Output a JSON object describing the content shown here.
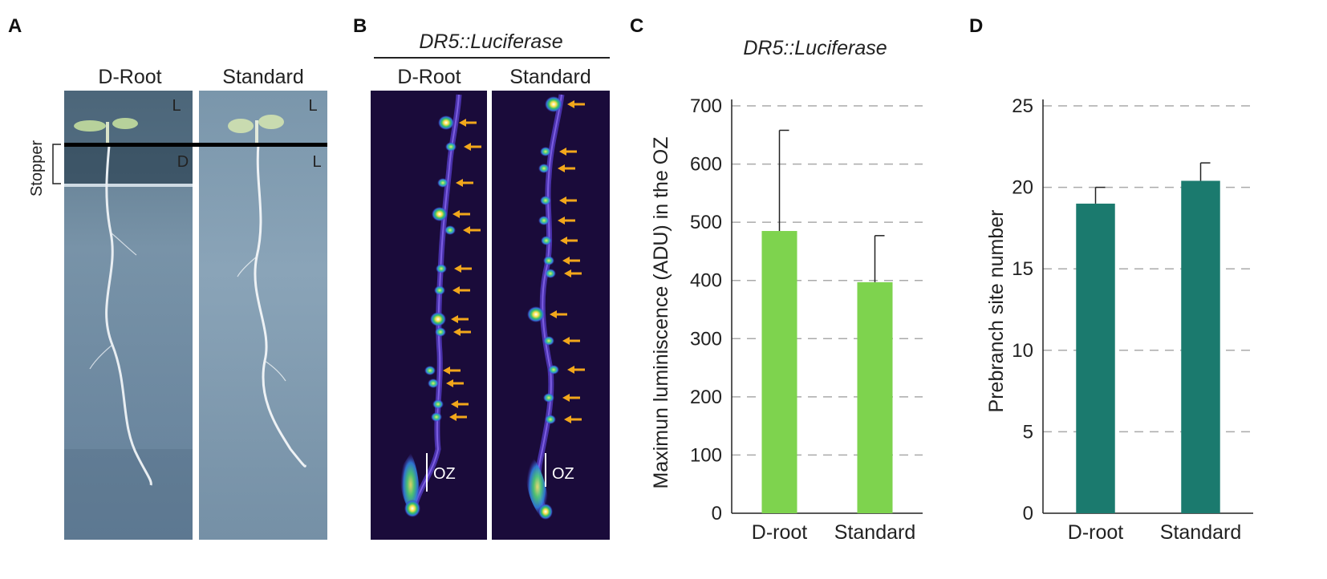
{
  "panels": {
    "a": {
      "letter": "A",
      "col_droot": "D-Root",
      "col_standard": "Standard",
      "stopper_label": "Stopper",
      "zone_labels": {
        "droot_top": "L",
        "droot_mid": "D",
        "standard_top": "L",
        "standard_mid": "L"
      }
    },
    "b": {
      "letter": "B",
      "title": "DR5::Luciferase",
      "col_droot": "D-Root",
      "col_standard": "Standard",
      "oz_label_1": "OZ",
      "oz_label_2": "OZ"
    },
    "c": {
      "letter": "C"
    },
    "d": {
      "letter": "D"
    }
  },
  "colors": {
    "bar_c": "#7ed34e",
    "bar_d": "#1b7a6e",
    "arrow": "#f2a71b",
    "grid": "#aaaaaa",
    "plate_bg": "#6c89a0",
    "lum_bg": "#1a0b3a"
  },
  "chart_data": [
    {
      "type": "bar",
      "title": "DR5::Luciferase",
      "ylabel": "Maximun luminiscence (ADU) in the OZ",
      "xlabel": "",
      "categories": [
        "D-root",
        "Standard"
      ],
      "values": [
        485,
        397
      ],
      "errors": [
        173,
        80
      ],
      "ylim": [
        0,
        700
      ],
      "yticks": [
        0,
        100,
        200,
        300,
        400,
        500,
        600,
        700
      ],
      "grid": true
    },
    {
      "type": "bar",
      "title": "",
      "ylabel": "Prebranch site number",
      "xlabel": "",
      "categories": [
        "D-root",
        "Standard"
      ],
      "values": [
        19.0,
        20.4
      ],
      "errors": [
        1.0,
        1.1
      ],
      "ylim": [
        0,
        25
      ],
      "yticks": [
        0,
        5,
        10,
        15,
        20,
        25
      ],
      "grid": true
    }
  ]
}
